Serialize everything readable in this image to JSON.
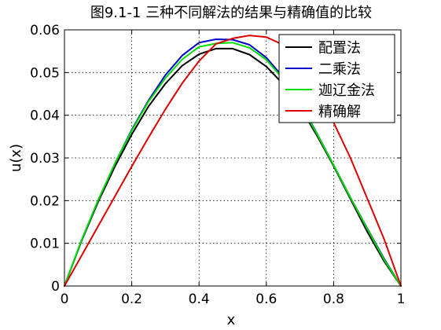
{
  "chart_data": {
    "type": "line",
    "title": "图9.1-1  三种不同解法的结果与精确值的比较",
    "xlabel": "x",
    "ylabel": "u(x)",
    "xlim": [
      0,
      1
    ],
    "ylim": [
      0,
      0.06
    ],
    "xticks": [
      "0",
      "0.2",
      "0.4",
      "0.6",
      "0.8",
      "1"
    ],
    "yticks": [
      "0",
      "0.01",
      "0.02",
      "0.03",
      "0.04",
      "0.05",
      "0.06"
    ],
    "grid": true,
    "legend_position": "top-right",
    "x": [
      0,
      0.05,
      0.1,
      0.15,
      0.2,
      0.25,
      0.3,
      0.35,
      0.4,
      0.45,
      0.5,
      0.55,
      0.6,
      0.65,
      0.7,
      0.75,
      0.8,
      0.85,
      0.9,
      0.95,
      1
    ],
    "series": [
      {
        "name": "配置法",
        "color": "#000000",
        "values": [
          0,
          0.0104,
          0.0197,
          0.028,
          0.0355,
          0.0421,
          0.0474,
          0.0516,
          0.0543,
          0.0556,
          0.0556,
          0.0542,
          0.0514,
          0.0473,
          0.0419,
          0.0353,
          0.0281,
          0.0204,
          0.0127,
          0.0058,
          0
        ]
      },
      {
        "name": "二乘法",
        "color": "#0000cc",
        "values": [
          0,
          0.0105,
          0.02,
          0.0287,
          0.0366,
          0.0435,
          0.0494,
          0.054,
          0.057,
          0.0578,
          0.0577,
          0.0565,
          0.0535,
          0.0489,
          0.0429,
          0.0358,
          0.0283,
          0.0207,
          0.0135,
          0.0064,
          0
        ]
      },
      {
        "name": "迦辽金法",
        "color": "#00dd00",
        "values": [
          0,
          0.0106,
          0.0201,
          0.0287,
          0.0364,
          0.0432,
          0.0487,
          0.0531,
          0.056,
          0.0568,
          0.057,
          0.0558,
          0.053,
          0.0485,
          0.0426,
          0.0357,
          0.0283,
          0.0207,
          0.0134,
          0.0062,
          0
        ]
      },
      {
        "name": "精确解",
        "color": "#dd0000",
        "values": [
          0,
          0.007,
          0.014,
          0.021,
          0.028,
          0.0348,
          0.0414,
          0.0475,
          0.0527,
          0.0567,
          0.058,
          0.0587,
          0.0583,
          0.0565,
          0.0528,
          0.0468,
          0.0383,
          0.03,
          0.0205,
          0.011,
          0
        ]
      }
    ]
  }
}
